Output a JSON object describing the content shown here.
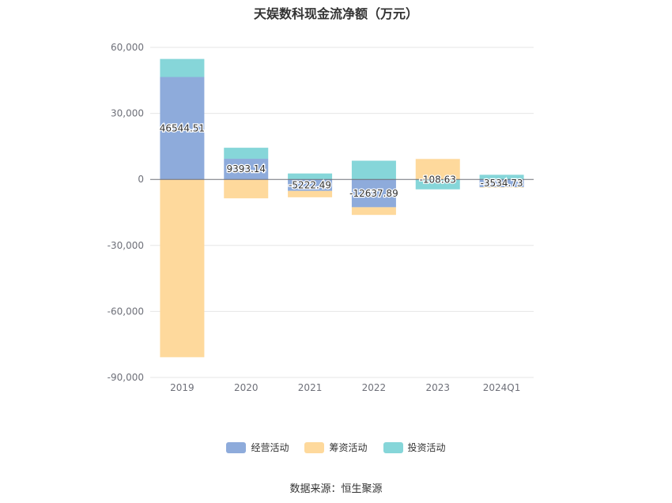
{
  "title": "天娱数科现金流净额（万元）",
  "source": "数据来源：恒生聚源",
  "colors": {
    "operating": "#8eabdb",
    "financing": "#fed99c",
    "investing": "#86d6d9",
    "grid": "#e6e6e6",
    "axis": "#6e7079",
    "zero_line": "#6e7079"
  },
  "chart_data": {
    "type": "bar",
    "stacked": true,
    "categories": [
      "2019",
      "2020",
      "2021",
      "2022",
      "2023",
      "2024Q1"
    ],
    "ylim": [
      -90000,
      60000
    ],
    "yticks": [
      60000,
      30000,
      0,
      -30000,
      -60000,
      -90000
    ],
    "ytick_labels": [
      "60,000",
      "30,000",
      "0",
      "-30,000",
      "-60,000",
      "-90,000"
    ],
    "legend_position": "bottom",
    "grid": true,
    "series": [
      {
        "name": "经营活动",
        "key": "operating",
        "values": [
          46544.51,
          9393.14,
          -5222.49,
          -12637.89,
          -108.63,
          -3534.73
        ]
      },
      {
        "name": "筹资活动",
        "key": "financing",
        "values": [
          -80800,
          -8600,
          -2900,
          -3500,
          9300,
          -200
        ]
      },
      {
        "name": "投资活动",
        "key": "investing",
        "values": [
          8200,
          5000,
          2700,
          8500,
          -4400,
          2100
        ]
      }
    ],
    "data_labels": [
      "46544.51",
      "9393.14",
      "-5222.49",
      "-12637.89",
      "-108.63",
      "-3534.73"
    ]
  }
}
